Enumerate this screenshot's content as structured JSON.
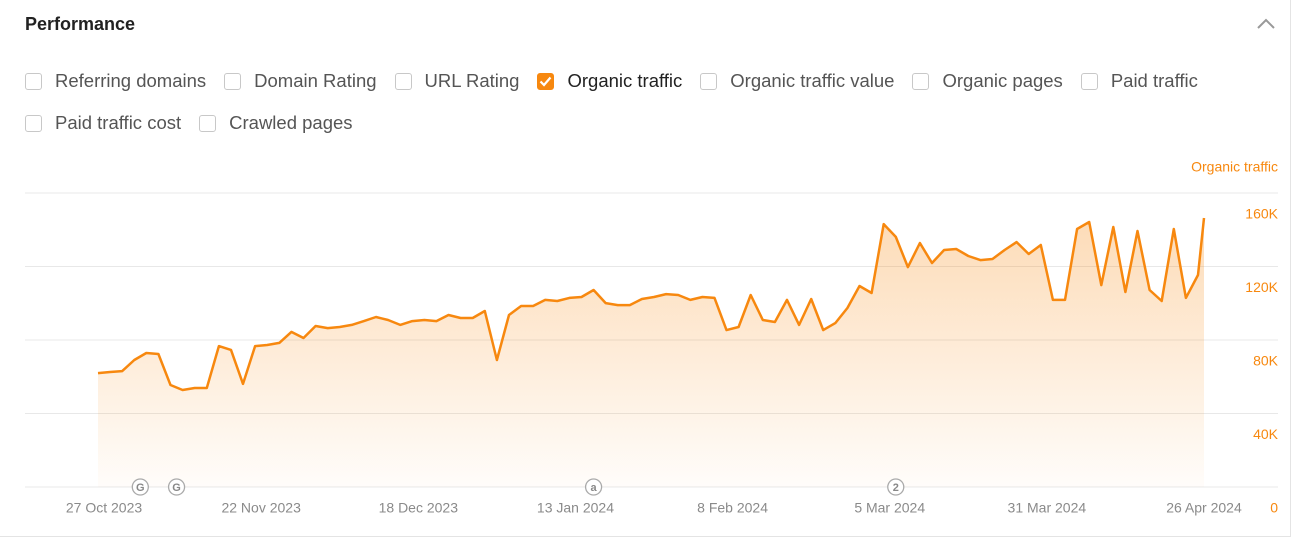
{
  "header": {
    "title": "Performance"
  },
  "metrics": [
    {
      "label": "Referring domains",
      "checked": false
    },
    {
      "label": "Domain Rating",
      "checked": false
    },
    {
      "label": "URL Rating",
      "checked": false
    },
    {
      "label": "Organic traffic",
      "checked": true
    },
    {
      "label": "Organic traffic value",
      "checked": false
    },
    {
      "label": "Organic pages",
      "checked": false
    },
    {
      "label": "Paid traffic",
      "checked": false
    },
    {
      "label": "Paid traffic cost",
      "checked": false
    },
    {
      "label": "Crawled pages",
      "checked": false
    }
  ],
  "chart_data": {
    "type": "area",
    "y_axis_label": "Organic traffic",
    "color": "#f7880f",
    "grid": true,
    "xlim": [
      "2023-10-26",
      "2024-04-26"
    ],
    "xticks": [
      {
        "value": "2023-10-27",
        "label": "27 Oct 2023"
      },
      {
        "value": "2023-11-22",
        "label": "22 Nov 2023"
      },
      {
        "value": "2023-12-18",
        "label": "18 Dec 2023"
      },
      {
        "value": "2024-01-13",
        "label": "13 Jan 2024"
      },
      {
        "value": "2024-02-08",
        "label": "8 Feb 2024"
      },
      {
        "value": "2024-03-05",
        "label": "5 Mar 2024"
      },
      {
        "value": "2024-03-31",
        "label": "31 Mar 2024"
      },
      {
        "value": "2024-04-26",
        "label": "26 Apr 2024"
      }
    ],
    "ylim": [
      0,
      160000
    ],
    "yticks": [
      0,
      {
        "value": 40000,
        "label": "40K"
      },
      {
        "value": 80000,
        "label": "80K"
      },
      {
        "value": 120000,
        "label": "120K"
      },
      {
        "value": 160000,
        "label": "160K"
      }
    ],
    "annotations": [
      {
        "x": "2023-11-02",
        "label": "G"
      },
      {
        "x": "2023-11-08",
        "label": "G"
      },
      {
        "x": "2024-01-16",
        "label": "a"
      },
      {
        "x": "2024-03-06",
        "label": "2"
      }
    ],
    "x": [
      "2023-10-26",
      "2023-10-28",
      "2023-10-30",
      "2023-11-01",
      "2023-11-03",
      "2023-11-05",
      "2023-11-07",
      "2023-11-09",
      "2023-11-11",
      "2023-11-13",
      "2023-11-15",
      "2023-11-17",
      "2023-11-19",
      "2023-11-21",
      "2023-11-23",
      "2023-11-25",
      "2023-11-27",
      "2023-11-29",
      "2023-12-01",
      "2023-12-03",
      "2023-12-05",
      "2023-12-07",
      "2023-12-09",
      "2023-12-11",
      "2023-12-13",
      "2023-12-15",
      "2023-12-17",
      "2023-12-19",
      "2023-12-21",
      "2023-12-23",
      "2023-12-25",
      "2023-12-27",
      "2023-12-29",
      "2023-12-31",
      "2024-01-02",
      "2024-01-04",
      "2024-01-06",
      "2024-01-08",
      "2024-01-10",
      "2024-01-12",
      "2024-01-14",
      "2024-01-16",
      "2024-01-18",
      "2024-01-20",
      "2024-01-22",
      "2024-01-24",
      "2024-01-26",
      "2024-01-28",
      "2024-01-30",
      "2024-02-01",
      "2024-02-03",
      "2024-02-05",
      "2024-02-07",
      "2024-02-09",
      "2024-02-11",
      "2024-02-13",
      "2024-02-15",
      "2024-02-17",
      "2024-02-19",
      "2024-02-21",
      "2024-02-23",
      "2024-02-25",
      "2024-02-27",
      "2024-02-29",
      "2024-03-02",
      "2024-03-04",
      "2024-03-06",
      "2024-03-08",
      "2024-03-10",
      "2024-03-12",
      "2024-03-14",
      "2024-03-16",
      "2024-03-18",
      "2024-03-20",
      "2024-03-22",
      "2024-03-24",
      "2024-03-26",
      "2024-03-28",
      "2024-03-30",
      "2024-04-01",
      "2024-04-03",
      "2024-04-05",
      "2024-04-07",
      "2024-04-09",
      "2024-04-11",
      "2024-04-13",
      "2024-04-15",
      "2024-04-17",
      "2024-04-19",
      "2024-04-21",
      "2024-04-23",
      "2024-04-25",
      "2024-04-26"
    ],
    "values": [
      62000,
      62600,
      63100,
      69100,
      72900,
      72400,
      55500,
      52800,
      53900,
      53900,
      76700,
      74600,
      56100,
      76700,
      77300,
      78400,
      84400,
      81100,
      87600,
      86500,
      87100,
      88200,
      90300,
      92500,
      90900,
      88200,
      90300,
      90900,
      90300,
      93600,
      92000,
      92000,
      95800,
      69100,
      93600,
      98500,
      98500,
      101800,
      101200,
      102900,
      103400,
      107200,
      100100,
      99000,
      99000,
      102300,
      103400,
      105000,
      104500,
      101800,
      103400,
      102900,
      85400,
      87100,
      104500,
      90900,
      89800,
      101800,
      88200,
      102300,
      85400,
      89200,
      97400,
      109400,
      105600,
      143100,
      136100,
      119700,
      132800,
      121900,
      129000,
      129500,
      125700,
      123500,
      124100,
      129000,
      133300,
      126800,
      131700,
      101800,
      101800,
      140400,
      144200,
      109900,
      141500,
      106100,
      139300,
      107200,
      101200,
      140400,
      102900,
      115400,
      146400
    ]
  }
}
